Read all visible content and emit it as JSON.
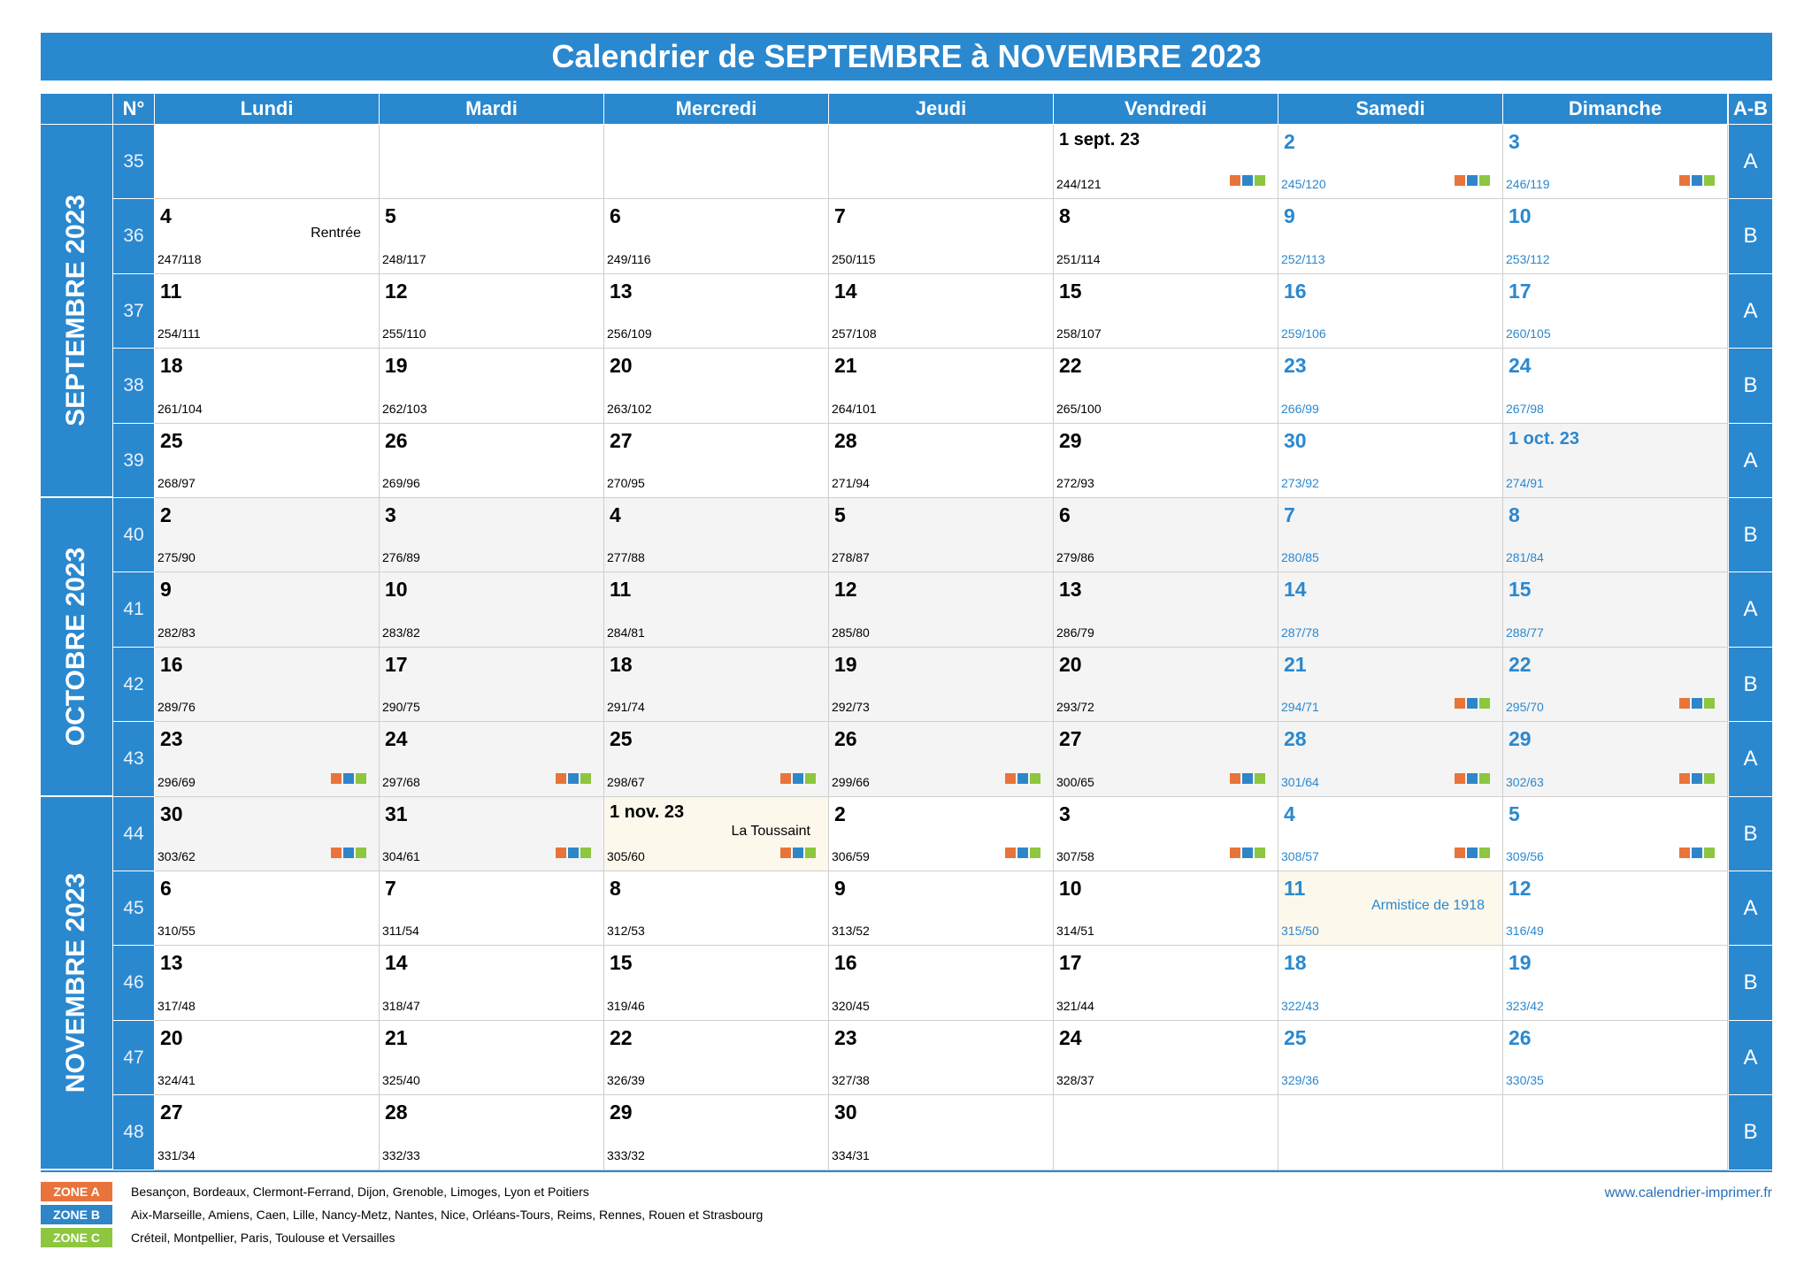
{
  "header": {
    "title": "Calendrier de SEPTEMBRE à NOVEMBRE 2023"
  },
  "columns": [
    "N°",
    "Lundi",
    "Mardi",
    "Mercredi",
    "Jeudi",
    "Vendredi",
    "Samedi",
    "Dimanche",
    "A-B"
  ],
  "months": [
    "SEPTEMBRE 2023",
    "OCTOBRE 2023",
    "NOVEMBRE 2023"
  ],
  "rows": [
    {
      "week": 35,
      "ab": "A",
      "cells": [
        null,
        null,
        null,
        null,
        {
          "day": "1 sept. 23",
          "code": "244/121",
          "month": 0,
          "zones": true
        },
        {
          "day": 2,
          "code": "245/120",
          "month": 0,
          "zones": true
        },
        {
          "day": 3,
          "code": "246/119",
          "month": 0,
          "zones": true
        }
      ]
    },
    {
      "week": 36,
      "ab": "B",
      "cells": [
        {
          "day": 4,
          "code": "247/118",
          "month": 0,
          "note": "Rentrée"
        },
        {
          "day": 5,
          "code": "248/117",
          "month": 0
        },
        {
          "day": 6,
          "code": "249/116",
          "month": 0
        },
        {
          "day": 7,
          "code": "250/115",
          "month": 0
        },
        {
          "day": 8,
          "code": "251/114",
          "month": 0
        },
        {
          "day": 9,
          "code": "252/113",
          "month": 0
        },
        {
          "day": 10,
          "code": "253/112",
          "month": 0
        }
      ]
    },
    {
      "week": 37,
      "ab": "A",
      "cells": [
        {
          "day": 11,
          "code": "254/111",
          "month": 0
        },
        {
          "day": 12,
          "code": "255/110",
          "month": 0
        },
        {
          "day": 13,
          "code": "256/109",
          "month": 0
        },
        {
          "day": 14,
          "code": "257/108",
          "month": 0
        },
        {
          "day": 15,
          "code": "258/107",
          "month": 0
        },
        {
          "day": 16,
          "code": "259/106",
          "month": 0
        },
        {
          "day": 17,
          "code": "260/105",
          "month": 0
        }
      ]
    },
    {
      "week": 38,
      "ab": "B",
      "cells": [
        {
          "day": 18,
          "code": "261/104",
          "month": 0
        },
        {
          "day": 19,
          "code": "262/103",
          "month": 0
        },
        {
          "day": 20,
          "code": "263/102",
          "month": 0
        },
        {
          "day": 21,
          "code": "264/101",
          "month": 0
        },
        {
          "day": 22,
          "code": "265/100",
          "month": 0
        },
        {
          "day": 23,
          "code": "266/99",
          "month": 0
        },
        {
          "day": 24,
          "code": "267/98",
          "month": 0
        }
      ]
    },
    {
      "week": 39,
      "ab": "A",
      "cells": [
        {
          "day": 25,
          "code": "268/97",
          "month": 0
        },
        {
          "day": 26,
          "code": "269/96",
          "month": 0
        },
        {
          "day": 27,
          "code": "270/95",
          "month": 0
        },
        {
          "day": 28,
          "code": "271/94",
          "month": 0
        },
        {
          "day": 29,
          "code": "272/93",
          "month": 0
        },
        {
          "day": 30,
          "code": "273/92",
          "month": 0
        },
        {
          "day": "1 oct. 23",
          "code": "274/91",
          "month": 1
        }
      ]
    },
    {
      "week": 40,
      "ab": "B",
      "cells": [
        {
          "day": 2,
          "code": "275/90",
          "month": 1
        },
        {
          "day": 3,
          "code": "276/89",
          "month": 1
        },
        {
          "day": 4,
          "code": "277/88",
          "month": 1
        },
        {
          "day": 5,
          "code": "278/87",
          "month": 1
        },
        {
          "day": 6,
          "code": "279/86",
          "month": 1
        },
        {
          "day": 7,
          "code": "280/85",
          "month": 1
        },
        {
          "day": 8,
          "code": "281/84",
          "month": 1
        }
      ]
    },
    {
      "week": 41,
      "ab": "A",
      "cells": [
        {
          "day": 9,
          "code": "282/83",
          "month": 1
        },
        {
          "day": 10,
          "code": "283/82",
          "month": 1
        },
        {
          "day": 11,
          "code": "284/81",
          "month": 1
        },
        {
          "day": 12,
          "code": "285/80",
          "month": 1
        },
        {
          "day": 13,
          "code": "286/79",
          "month": 1
        },
        {
          "day": 14,
          "code": "287/78",
          "month": 1
        },
        {
          "day": 15,
          "code": "288/77",
          "month": 1
        }
      ]
    },
    {
      "week": 42,
      "ab": "B",
      "cells": [
        {
          "day": 16,
          "code": "289/76",
          "month": 1
        },
        {
          "day": 17,
          "code": "290/75",
          "month": 1
        },
        {
          "day": 18,
          "code": "291/74",
          "month": 1
        },
        {
          "day": 19,
          "code": "292/73",
          "month": 1
        },
        {
          "day": 20,
          "code": "293/72",
          "month": 1
        },
        {
          "day": 21,
          "code": "294/71",
          "month": 1,
          "zones": true
        },
        {
          "day": 22,
          "code": "295/70",
          "month": 1,
          "zones": true
        }
      ]
    },
    {
      "week": 43,
      "ab": "A",
      "cells": [
        {
          "day": 23,
          "code": "296/69",
          "month": 1,
          "zones": true
        },
        {
          "day": 24,
          "code": "297/68",
          "month": 1,
          "zones": true
        },
        {
          "day": 25,
          "code": "298/67",
          "month": 1,
          "zones": true
        },
        {
          "day": 26,
          "code": "299/66",
          "month": 1,
          "zones": true
        },
        {
          "day": 27,
          "code": "300/65",
          "month": 1,
          "zones": true
        },
        {
          "day": 28,
          "code": "301/64",
          "month": 1,
          "zones": true
        },
        {
          "day": 29,
          "code": "302/63",
          "month": 1,
          "zones": true
        }
      ]
    },
    {
      "week": 44,
      "ab": "B",
      "cells": [
        {
          "day": 30,
          "code": "303/62",
          "month": 1,
          "zones": true
        },
        {
          "day": 31,
          "code": "304/61",
          "month": 1,
          "zones": true
        },
        {
          "day": "1 nov. 23",
          "code": "305/60",
          "month": 2,
          "zones": true,
          "note": "La Toussaint",
          "holiday": true
        },
        {
          "day": 2,
          "code": "306/59",
          "month": 2,
          "zones": true
        },
        {
          "day": 3,
          "code": "307/58",
          "month": 2,
          "zones": true
        },
        {
          "day": 4,
          "code": "308/57",
          "month": 2,
          "zones": true
        },
        {
          "day": 5,
          "code": "309/56",
          "month": 2,
          "zones": true
        }
      ]
    },
    {
      "week": 45,
      "ab": "A",
      "cells": [
        {
          "day": 6,
          "code": "310/55",
          "month": 2
        },
        {
          "day": 7,
          "code": "311/54",
          "month": 2
        },
        {
          "day": 8,
          "code": "312/53",
          "month": 2
        },
        {
          "day": 9,
          "code": "313/52",
          "month": 2
        },
        {
          "day": 10,
          "code": "314/51",
          "month": 2
        },
        {
          "day": 11,
          "code": "315/50",
          "month": 2,
          "note": "Armistice de 1918",
          "holiday": true
        },
        {
          "day": 12,
          "code": "316/49",
          "month": 2
        }
      ]
    },
    {
      "week": 46,
      "ab": "B",
      "cells": [
        {
          "day": 13,
          "code": "317/48",
          "month": 2
        },
        {
          "day": 14,
          "code": "318/47",
          "month": 2
        },
        {
          "day": 15,
          "code": "319/46",
          "month": 2
        },
        {
          "day": 16,
          "code": "320/45",
          "month": 2
        },
        {
          "day": 17,
          "code": "321/44",
          "month": 2
        },
        {
          "day": 18,
          "code": "322/43",
          "month": 2
        },
        {
          "day": 19,
          "code": "323/42",
          "month": 2
        }
      ]
    },
    {
      "week": 47,
      "ab": "A",
      "cells": [
        {
          "day": 20,
          "code": "324/41",
          "month": 2
        },
        {
          "day": 21,
          "code": "325/40",
          "month": 2
        },
        {
          "day": 22,
          "code": "326/39",
          "month": 2
        },
        {
          "day": 23,
          "code": "327/38",
          "month": 2
        },
        {
          "day": 24,
          "code": "328/37",
          "month": 2
        },
        {
          "day": 25,
          "code": "329/36",
          "month": 2
        },
        {
          "day": 26,
          "code": "330/35",
          "month": 2
        }
      ]
    },
    {
      "week": 48,
      "ab": "B",
      "cells": [
        {
          "day": 27,
          "code": "331/34",
          "month": 2
        },
        {
          "day": 28,
          "code": "332/33",
          "month": 2
        },
        {
          "day": 29,
          "code": "333/32",
          "month": 2
        },
        {
          "day": 30,
          "code": "334/31",
          "month": 2
        },
        null,
        null,
        null
      ]
    }
  ],
  "legend": [
    {
      "zone": "ZONE A",
      "color": "#e8743b",
      "text": "Besançon, Bordeaux, Clermont-Ferrand, Dijon, Grenoble, Limoges, Lyon et Poitiers"
    },
    {
      "zone": "ZONE B",
      "color": "#2e86c8",
      "text": "Aix-Marseille, Amiens, Caen, Lille, Nancy-Metz, Nantes, Nice, Orléans-Tours, Reims, Rennes, Rouen et Strasbourg"
    },
    {
      "zone": "ZONE C",
      "color": "#8dc63f",
      "text": "Créteil, Montpellier, Paris, Toulouse et Versailles"
    }
  ],
  "footer": {
    "website": "www.calendrier-imprimer.fr"
  }
}
